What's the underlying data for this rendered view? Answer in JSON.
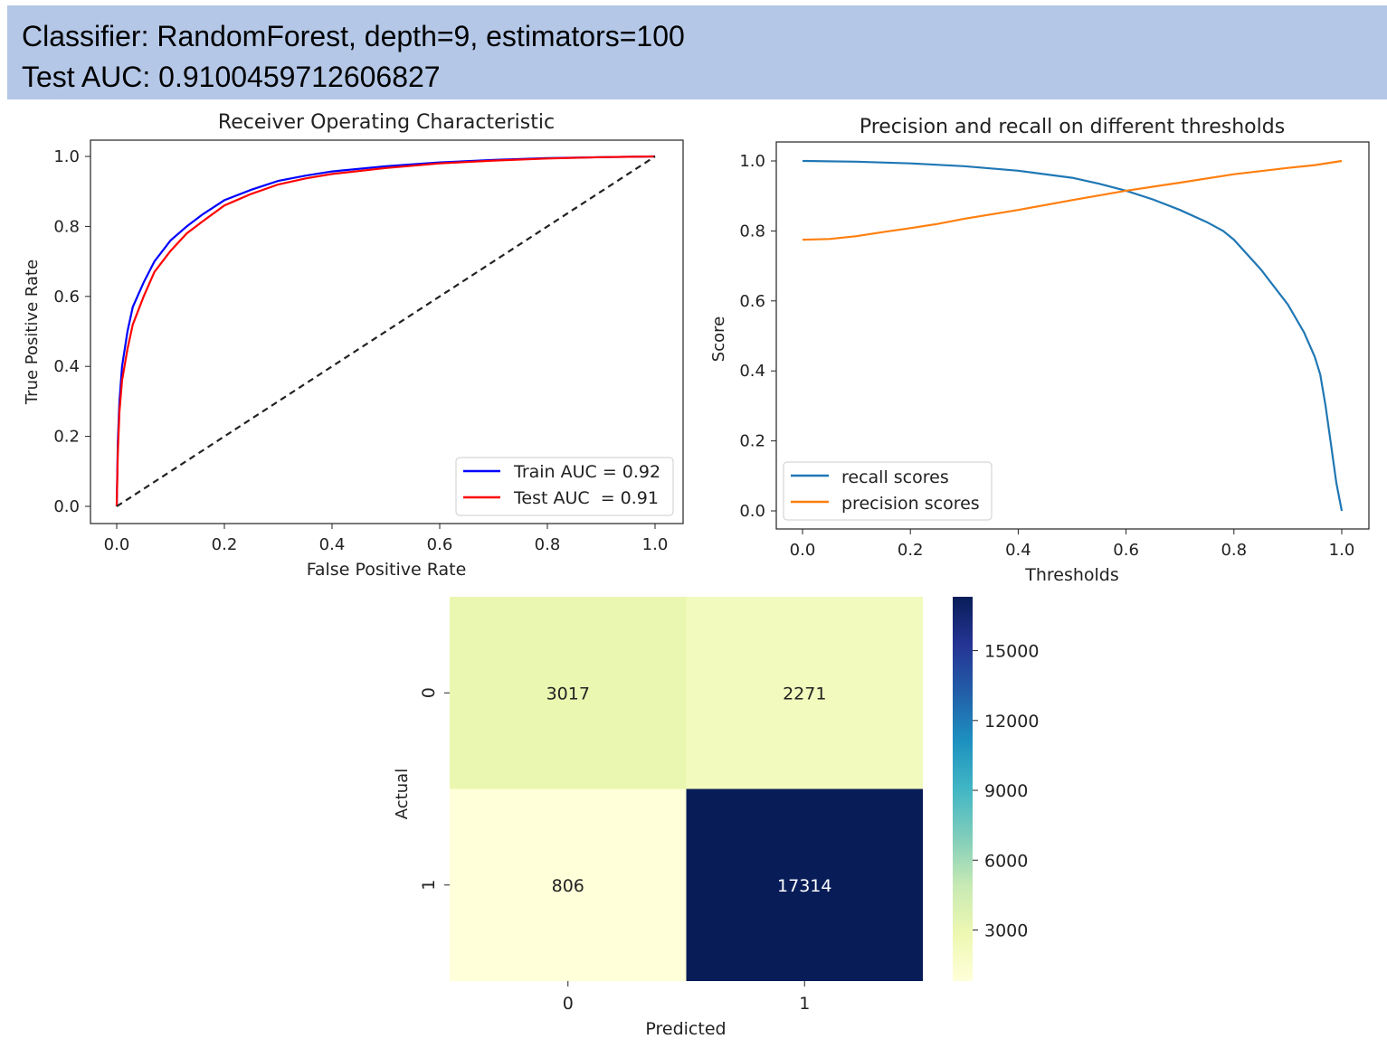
{
  "header": {
    "line1": "Classifier: RandomForest, depth=9, estimators=100",
    "line2": "Test AUC: 0.9100459712606827"
  },
  "chart_data": [
    {
      "type": "line",
      "title": "Receiver Operating Characteristic",
      "xlabel": "False Positive Rate",
      "ylabel": "True Positive Rate",
      "xlim": [
        0,
        1
      ],
      "ylim": [
        0,
        1
      ],
      "xticks": [
        "0.0",
        "0.2",
        "0.4",
        "0.6",
        "0.8",
        "1.0"
      ],
      "yticks": [
        "0.0",
        "0.2",
        "0.4",
        "0.6",
        "0.8",
        "1.0"
      ],
      "grid": false,
      "legend": "lower-right",
      "series": [
        {
          "name": "Train AUC = 0.92",
          "color": "#0000ff",
          "x": [
            0,
            0.002,
            0.005,
            0.01,
            0.02,
            0.03,
            0.05,
            0.07,
            0.1,
            0.13,
            0.16,
            0.2,
            0.25,
            0.3,
            0.35,
            0.4,
            0.5,
            0.6,
            0.7,
            0.8,
            0.9,
            1.0
          ],
          "y": [
            0,
            0.18,
            0.3,
            0.4,
            0.5,
            0.57,
            0.64,
            0.7,
            0.76,
            0.8,
            0.835,
            0.875,
            0.905,
            0.93,
            0.945,
            0.957,
            0.972,
            0.983,
            0.99,
            0.995,
            0.998,
            1.0
          ]
        },
        {
          "name": "Test AUC  = 0.91",
          "color": "#ff0000",
          "x": [
            0,
            0.002,
            0.005,
            0.01,
            0.02,
            0.03,
            0.05,
            0.07,
            0.1,
            0.13,
            0.16,
            0.2,
            0.25,
            0.3,
            0.35,
            0.4,
            0.5,
            0.6,
            0.7,
            0.8,
            0.9,
            1.0
          ],
          "y": [
            0,
            0.15,
            0.27,
            0.36,
            0.45,
            0.52,
            0.6,
            0.67,
            0.73,
            0.78,
            0.815,
            0.86,
            0.893,
            0.92,
            0.937,
            0.95,
            0.967,
            0.98,
            0.988,
            0.994,
            0.998,
            1.0
          ]
        },
        {
          "name": "",
          "color": "#222222",
          "dash": true,
          "x": [
            0,
            1
          ],
          "y": [
            0,
            1
          ]
        }
      ]
    },
    {
      "type": "line",
      "title": "Precision and recall on different thresholds",
      "xlabel": "Thresholds",
      "ylabel": "Score",
      "xlim": [
        0,
        1
      ],
      "ylim": [
        0,
        1
      ],
      "xticks": [
        "0.0",
        "0.2",
        "0.4",
        "0.6",
        "0.8",
        "1.0"
      ],
      "yticks": [
        "0.0",
        "0.2",
        "0.4",
        "0.6",
        "0.8",
        "1.0"
      ],
      "grid": false,
      "legend": "lower-left",
      "series": [
        {
          "name": "recall scores",
          "color": "#1f77b4",
          "x": [
            0,
            0.1,
            0.2,
            0.3,
            0.4,
            0.5,
            0.55,
            0.6,
            0.65,
            0.7,
            0.75,
            0.78,
            0.8,
            0.85,
            0.9,
            0.93,
            0.95,
            0.96,
            0.97,
            0.98,
            0.99,
            1.0
          ],
          "y": [
            1.0,
            0.998,
            0.993,
            0.985,
            0.972,
            0.952,
            0.935,
            0.915,
            0.89,
            0.86,
            0.825,
            0.8,
            0.775,
            0.69,
            0.59,
            0.51,
            0.44,
            0.39,
            0.3,
            0.19,
            0.08,
            0.0
          ]
        },
        {
          "name": "precision scores",
          "color": "#ff7f0e",
          "x": [
            0,
            0.05,
            0.1,
            0.15,
            0.2,
            0.25,
            0.3,
            0.4,
            0.5,
            0.6,
            0.7,
            0.8,
            0.9,
            0.95,
            1.0
          ],
          "y": [
            0.775,
            0.777,
            0.785,
            0.797,
            0.808,
            0.82,
            0.835,
            0.86,
            0.888,
            0.915,
            0.938,
            0.962,
            0.98,
            0.988,
            1.0
          ]
        }
      ]
    },
    {
      "type": "heatmap",
      "xlabel": "Predicted",
      "ylabel": "Actual",
      "x_categories": [
        "0",
        "1"
      ],
      "y_categories": [
        "0",
        "1"
      ],
      "values": [
        [
          3017,
          2271
        ],
        [
          806,
          17314
        ]
      ],
      "labels": [
        [
          "3017",
          "2271"
        ],
        [
          "806",
          "17314"
        ]
      ],
      "colormap": "YlGnBu",
      "colorbar": {
        "min": 806,
        "max": 17314,
        "ticks": [
          3000,
          6000,
          9000,
          12000,
          15000
        ],
        "ticklabels": [
          "3000",
          "6000",
          "9000",
          "12000",
          "15000"
        ]
      }
    }
  ]
}
